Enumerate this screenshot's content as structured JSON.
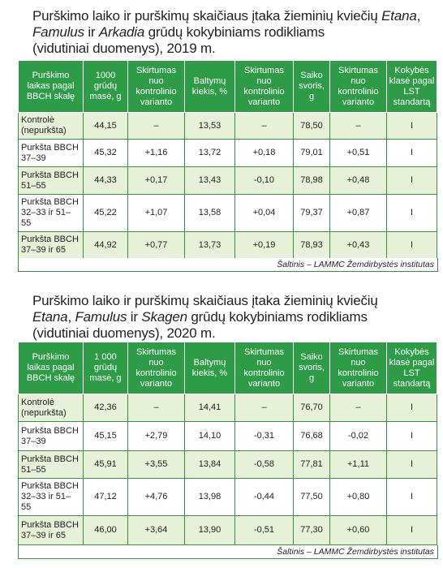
{
  "table1": {
    "title": {
      "p1": "Purškimo laiko ir purškimų skaičiaus įtaka žieminių kviečių ",
      "p2": "Etana",
      "p3": ",",
      "p4": "Famulus",
      "p5": " ir ",
      "p6": "Arkadia",
      "p7": " grūdų kokybiniams rodikliams",
      "p8": "(vidutiniai duomenys), 2019 m."
    },
    "headers": [
      "Purškimo laikas pagal BBCH skalę",
      "1000 grūdų masė, g",
      "Skirtumas nuo kontrolinio varianto",
      "Baltymų kiekis, %",
      "Skirtumas nuo kontrolinio varianto",
      "Saiko svoris, g",
      "Skirtumas nuo kontrolinio varianto",
      "Kokybės klasė pagal LST standartą"
    ],
    "rows": [
      [
        "Kontrolė (nepurkšta)",
        "44,15",
        "–",
        "13,53",
        "–",
        "78,50",
        "–",
        "I"
      ],
      [
        "Purkšta BBCH 37–39",
        "45,32",
        "+1,16",
        "13,72",
        "+0,18",
        "79,01",
        "+0,51",
        "I"
      ],
      [
        "Purkšta BBCH 51–55",
        "44,33",
        "+0,17",
        "13,43",
        "-0,10",
        "78,98",
        "+0,48",
        "I"
      ],
      [
        "Purkšta BBCH 32–33 ir 51–55",
        "45,22",
        "+1,07",
        "13,58",
        "+0,04",
        "79,37",
        "+0,87",
        "I"
      ],
      [
        "Purkšta BBCH 37–39 ir 65",
        "44,92",
        "+0,77",
        "13,73",
        "+0,19",
        "78,93",
        "+0,43",
        "I"
      ]
    ],
    "source": "Šaltinis – LAMMC Žemdirbystės institutas"
  },
  "table2": {
    "title": {
      "p1": "Purškimo laiko ir purškimų skaičiaus įtaka žieminių kviečių",
      "p2": "Etana",
      "p3": ", ",
      "p4": "Famulus",
      "p5": " ir ",
      "p6": "Skagen",
      "p7": "  grūdų kokybiniams rodikliams",
      "p8": "(vidutiniai duomenys), 2020 m."
    },
    "headers": [
      "Purškimo laikas pagal BBCH skalę",
      "1 000 grūdų masė, g",
      "Skirtumas nuo kontrolinio varianto",
      "Baltymų kiekis, %",
      "Skirtumas nuo kontrolinio varianto",
      "Saiko svoris, g",
      "Skirtumas nuo kontrolinio varianto",
      "Kokybės klasė pagal LST standartą"
    ],
    "rows": [
      [
        "Kontrolė (nepurkšta)",
        "42,36",
        "–",
        "14,41",
        "–",
        "76,70",
        "–",
        "I"
      ],
      [
        "Purkšta BBCH 37–39",
        "45,15",
        "+2,79",
        "14,10",
        "-0,31",
        "76,68",
        "-0,02",
        "I"
      ],
      [
        "Purkšta BBCH 51–55",
        "45,91",
        "+3,55",
        "13,84",
        "-0,58",
        "77,81",
        "+1,11",
        "I"
      ],
      [
        "Purkšta BBCH 32–33 ir 51–55",
        "47,12",
        "+4,76",
        "13,98",
        "-0,44",
        "77,50",
        "+0,80",
        "I"
      ],
      [
        "Purkšta BBCH 37–39 ir 65",
        "46,00",
        "+3,64",
        "13,90",
        "-0,51",
        "77,30",
        "+0,60",
        "I"
      ]
    ],
    "source": "Šaltinis – LAMMC Žemdirbystės institutas"
  }
}
